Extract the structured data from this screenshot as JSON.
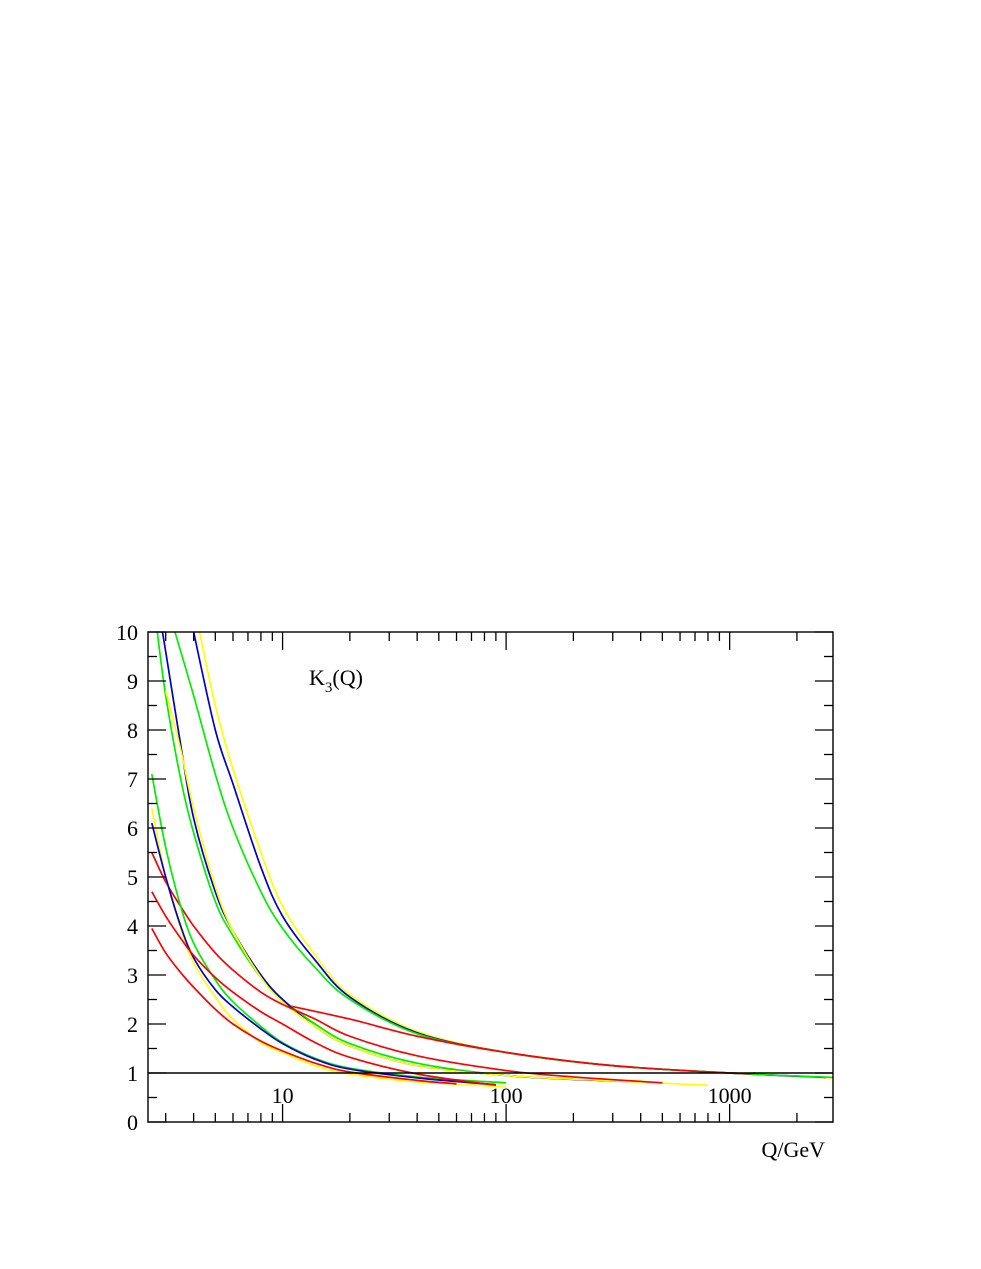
{
  "chart_data": {
    "type": "line",
    "title": "",
    "xlabel": "Q/GeV",
    "ylabel": "",
    "annotation": {
      "main": "K",
      "sub": "3",
      "tail": "(Q)"
    },
    "x_scale": "log",
    "xlim": [
      2.5,
      2900
    ],
    "ylim": [
      0,
      10
    ],
    "x_tick_labels": [
      {
        "value": 10,
        "label": "10"
      },
      {
        "value": 100,
        "label": "100"
      },
      {
        "value": 1000,
        "label": "1000"
      }
    ],
    "y_tick_labels": [
      {
        "value": 0,
        "label": "0"
      },
      {
        "value": 1,
        "label": "1"
      },
      {
        "value": 2,
        "label": "2"
      },
      {
        "value": 3,
        "label": "3"
      },
      {
        "value": 4,
        "label": "4"
      },
      {
        "value": 5,
        "label": "5"
      },
      {
        "value": 6,
        "label": "6"
      },
      {
        "value": 7,
        "label": "7"
      },
      {
        "value": 8,
        "label": "8"
      },
      {
        "value": 9,
        "label": "9"
      },
      {
        "value": 10,
        "label": "10"
      }
    ],
    "reference_line": {
      "y": 1
    },
    "grid": false,
    "legend": "none",
    "colors": {
      "red": "#ff0000",
      "green": "#00ee00",
      "blue": "#0000cc",
      "yellow": "#ffff00",
      "axis": "#000000"
    },
    "series": [
      {
        "color": "yellow",
        "x": [
          4.25,
          5,
          6,
          8,
          10,
          14,
          20,
          40,
          100,
          300,
          1000,
          2900
        ],
        "y": [
          10,
          8.5,
          7.2,
          5.5,
          4.4,
          3.4,
          2.6,
          1.85,
          1.42,
          1.15,
          1.0,
          0.9
        ]
      },
      {
        "color": "blue",
        "x": [
          4.0,
          5,
          6,
          8,
          10,
          14,
          20,
          40,
          100,
          300,
          1000,
          2700
        ],
        "y": [
          10,
          8.0,
          6.9,
          5.2,
          4.2,
          3.3,
          2.55,
          1.82,
          1.42,
          1.15,
          1.0,
          0.91
        ]
      },
      {
        "color": "green",
        "x": [
          3.3,
          4,
          5,
          6,
          8,
          10,
          14,
          20,
          40,
          100,
          300,
          1000,
          2900
        ],
        "y": [
          10,
          8.7,
          7.1,
          6.0,
          4.7,
          3.95,
          3.15,
          2.5,
          1.8,
          1.42,
          1.15,
          1.0,
          0.91
        ]
      },
      {
        "color": "red",
        "x": [
          10,
          20,
          40,
          100,
          300,
          1000,
          1300
        ],
        "y": [
          2.4,
          2.1,
          1.75,
          1.42,
          1.15,
          1.0,
          1.0
        ]
      },
      {
        "color": "green",
        "x": [
          2.75,
          3,
          3.5,
          4,
          5,
          6,
          8,
          10,
          14,
          20,
          40,
          100,
          200
        ],
        "y": [
          10,
          8.7,
          7.0,
          5.9,
          4.5,
          3.8,
          2.95,
          2.5,
          2.0,
          1.6,
          1.2,
          0.95,
          0.88
        ]
      },
      {
        "color": "blue",
        "x": [
          2.9,
          3,
          3.5,
          4,
          5,
          6,
          8,
          10,
          14,
          20,
          40,
          100,
          200,
          500
        ],
        "y": [
          10,
          9.6,
          7.7,
          6.2,
          4.7,
          3.9,
          3.0,
          2.5,
          1.95,
          1.55,
          1.15,
          0.95,
          0.87,
          0.8
        ]
      },
      {
        "color": "yellow",
        "x": [
          3.0,
          3.5,
          4,
          5,
          6,
          8,
          10,
          14,
          20,
          40,
          100,
          300,
          800
        ],
        "y": [
          8.8,
          7.6,
          6.4,
          4.8,
          3.9,
          2.95,
          2.45,
          1.95,
          1.55,
          1.15,
          0.95,
          0.84,
          0.75
        ]
      },
      {
        "color": "red",
        "x": [
          2.6,
          3,
          3.5,
          4,
          5,
          6,
          8,
          10,
          14,
          20,
          40,
          100,
          200,
          500
        ],
        "y": [
          5.5,
          4.9,
          4.4,
          4.0,
          3.45,
          3.1,
          2.65,
          2.4,
          2.1,
          1.75,
          1.35,
          1.05,
          0.92,
          0.8
        ]
      },
      {
        "color": "green",
        "x": [
          2.6,
          3,
          3.5,
          4,
          5,
          6,
          8,
          10,
          14,
          20,
          40,
          100
        ],
        "y": [
          7.1,
          5.6,
          4.4,
          3.65,
          2.9,
          2.45,
          1.95,
          1.62,
          1.3,
          1.1,
          0.92,
          0.8
        ]
      },
      {
        "color": "yellow",
        "x": [
          2.6,
          3,
          3.5,
          4,
          5,
          6,
          8,
          10,
          14,
          20,
          40,
          100
        ],
        "y": [
          6.4,
          5.0,
          3.95,
          3.25,
          2.55,
          2.1,
          1.62,
          1.42,
          1.15,
          0.98,
          0.82,
          0.72
        ]
      },
      {
        "color": "blue",
        "x": [
          2.6,
          3,
          3.5,
          4,
          5,
          6,
          8,
          10,
          14,
          20,
          40,
          90
        ],
        "y": [
          6.1,
          5.0,
          4.0,
          3.35,
          2.7,
          2.35,
          1.9,
          1.6,
          1.28,
          1.08,
          0.9,
          0.76
        ]
      },
      {
        "color": "red",
        "x": [
          2.6,
          3,
          3.5,
          4,
          5,
          6,
          8,
          10,
          14,
          20,
          40,
          90
        ],
        "y": [
          4.7,
          4.2,
          3.75,
          3.4,
          2.95,
          2.65,
          2.25,
          2.0,
          1.62,
          1.32,
          0.98,
          0.75
        ]
      },
      {
        "color": "red",
        "x": [
          2.6,
          3,
          3.5,
          4,
          5,
          6,
          8,
          10,
          14,
          20,
          40,
          60
        ],
        "y": [
          3.95,
          3.45,
          3.05,
          2.75,
          2.3,
          2.0,
          1.65,
          1.45,
          1.2,
          1.02,
          0.85,
          0.78
        ]
      }
    ]
  }
}
